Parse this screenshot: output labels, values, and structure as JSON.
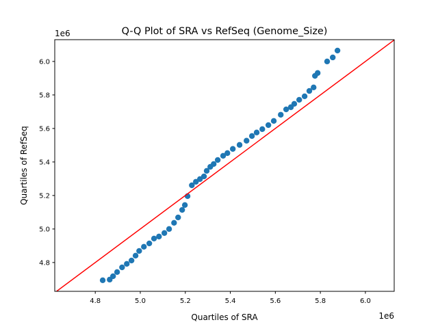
{
  "chart_data": {
    "type": "scatter",
    "title": "Q-Q Plot of SRA vs RefSeq (Genome_Size)",
    "xlabel": "Quartiles of SRA",
    "ylabel": "Quartiles of RefSeq",
    "x_offset_label": "1e6",
    "y_offset_label": "1e6",
    "xlim": [
      4.62,
      6.128
    ],
    "ylim": [
      4.628,
      6.13
    ],
    "xticks": [
      4.8,
      5.0,
      5.2,
      5.4,
      5.6,
      5.8,
      6.0
    ],
    "xtick_labels": [
      "4.8",
      "5.0",
      "5.2",
      "5.4",
      "5.6",
      "5.8",
      "6.0"
    ],
    "yticks": [
      4.8,
      5.0,
      5.2,
      5.4,
      5.6,
      5.8,
      6.0
    ],
    "ytick_labels": [
      "4.8",
      "5.0",
      "5.2",
      "5.4",
      "5.6",
      "5.8",
      "6.0"
    ],
    "grid": false,
    "point_color": "#1f77b4",
    "reference_line": {
      "type": "y=x",
      "color": "#ff0000"
    },
    "points": [
      [
        4.833,
        4.694
      ],
      [
        4.864,
        4.698
      ],
      [
        4.879,
        4.718
      ],
      [
        4.897,
        4.743
      ],
      [
        4.919,
        4.771
      ],
      [
        4.94,
        4.792
      ],
      [
        4.961,
        4.812
      ],
      [
        4.979,
        4.841
      ],
      [
        4.995,
        4.869
      ],
      [
        5.016,
        4.894
      ],
      [
        5.04,
        4.914
      ],
      [
        5.061,
        4.943
      ],
      [
        5.083,
        4.955
      ],
      [
        5.107,
        4.976
      ],
      [
        5.128,
        5.0
      ],
      [
        5.15,
        5.037
      ],
      [
        5.168,
        5.069
      ],
      [
        5.186,
        5.114
      ],
      [
        5.198,
        5.143
      ],
      [
        5.21,
        5.196
      ],
      [
        5.229,
        5.261
      ],
      [
        5.247,
        5.282
      ],
      [
        5.265,
        5.298
      ],
      [
        5.283,
        5.314
      ],
      [
        5.295,
        5.347
      ],
      [
        5.311,
        5.371
      ],
      [
        5.326,
        5.388
      ],
      [
        5.344,
        5.412
      ],
      [
        5.368,
        5.437
      ],
      [
        5.387,
        5.453
      ],
      [
        5.411,
        5.478
      ],
      [
        5.441,
        5.502
      ],
      [
        5.472,
        5.527
      ],
      [
        5.496,
        5.555
      ],
      [
        5.517,
        5.576
      ],
      [
        5.542,
        5.596
      ],
      [
        5.569,
        5.62
      ],
      [
        5.593,
        5.645
      ],
      [
        5.624,
        5.682
      ],
      [
        5.648,
        5.714
      ],
      [
        5.669,
        5.727
      ],
      [
        5.684,
        5.747
      ],
      [
        5.706,
        5.771
      ],
      [
        5.73,
        5.792
      ],
      [
        5.751,
        5.824
      ],
      [
        5.77,
        5.845
      ],
      [
        5.776,
        5.914
      ],
      [
        5.788,
        5.931
      ],
      [
        5.83,
        6.0
      ],
      [
        5.855,
        6.024
      ],
      [
        5.876,
        6.065
      ]
    ]
  }
}
